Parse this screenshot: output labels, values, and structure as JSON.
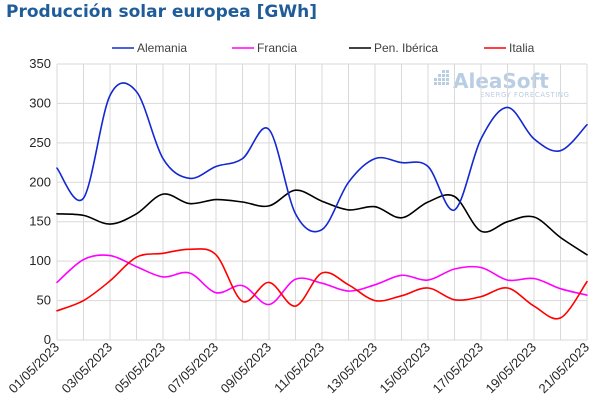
{
  "title": "Producción solar europea [GWh]",
  "logo": {
    "main": "AleaSoft",
    "sub": "ENERGY FORECASTING"
  },
  "colors": {
    "title": "#1f5c99",
    "grid": "#d9d9d9",
    "axis_text": "#262626",
    "logo": "#b9cde3"
  },
  "chart_data": {
    "type": "line",
    "title": "Producción solar europea [GWh]",
    "xlabel": "",
    "ylabel": "",
    "ylim": [
      0,
      350
    ],
    "yticks": [
      0,
      50,
      100,
      150,
      200,
      250,
      300,
      350
    ],
    "grid": true,
    "legend_position": "top",
    "x": [
      "01/05/2023",
      "02/05/2023",
      "03/05/2023",
      "04/05/2023",
      "05/05/2023",
      "06/05/2023",
      "07/05/2023",
      "08/05/2023",
      "09/05/2023",
      "10/05/2023",
      "11/05/2023",
      "12/05/2023",
      "13/05/2023",
      "14/05/2023",
      "15/05/2023",
      "16/05/2023",
      "17/05/2023",
      "18/05/2023",
      "19/05/2023",
      "20/05/2023",
      "21/05/2023"
    ],
    "xtick_labels": [
      "01/05/2023",
      "03/05/2023",
      "05/05/2023",
      "07/05/2023",
      "09/05/2023",
      "11/05/2023",
      "13/05/2023",
      "15/05/2023",
      "17/05/2023",
      "19/05/2023",
      "21/05/2023"
    ],
    "series": [
      {
        "name": "Alemania",
        "color": "#1428d2",
        "values": [
          218,
          180,
          310,
          315,
          230,
          205,
          220,
          230,
          267,
          160,
          140,
          200,
          230,
          225,
          220,
          165,
          255,
          295,
          255,
          240,
          273
        ]
      },
      {
        "name": "Francia",
        "color": "#ff00ff",
        "values": [
          73,
          102,
          107,
          93,
          80,
          85,
          60,
          69,
          45,
          77,
          72,
          62,
          70,
          82,
          76,
          90,
          92,
          76,
          78,
          65,
          57
        ]
      },
      {
        "name": "Pen. Ibérica",
        "color": "#000000",
        "values": [
          160,
          158,
          147,
          160,
          185,
          173,
          178,
          175,
          170,
          190,
          176,
          165,
          169,
          155,
          175,
          182,
          138,
          150,
          156,
          130,
          108
        ]
      },
      {
        "name": "Italia",
        "color": "#ff0000",
        "values": [
          37,
          50,
          75,
          105,
          110,
          115,
          108,
          49,
          73,
          43,
          85,
          70,
          50,
          56,
          66,
          51,
          55,
          66,
          43,
          28,
          74
        ]
      }
    ]
  }
}
